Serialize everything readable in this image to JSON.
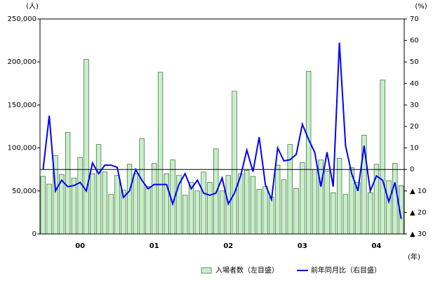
{
  "chart_data": {
    "type": "bar",
    "y_unit": "(人)",
    "y2_unit": "(%)",
    "x_unit": "(年)",
    "categories": [
      null,
      null,
      null,
      null,
      null,
      null,
      "00",
      null,
      null,
      null,
      null,
      null,
      null,
      null,
      null,
      null,
      null,
      null,
      "01",
      null,
      null,
      null,
      null,
      null,
      null,
      null,
      null,
      null,
      null,
      null,
      "02",
      null,
      null,
      null,
      null,
      null,
      null,
      null,
      null,
      null,
      null,
      null,
      "03",
      null,
      null,
      null,
      null,
      null,
      null,
      null,
      null,
      null,
      null,
      null,
      "04",
      null,
      null,
      null,
      null
    ],
    "series": [
      {
        "name": "入場者数（左目盛）",
        "type": "bar",
        "color": "#c8f0c8",
        "edge": "#1a4d1a",
        "values": [
          67000,
          58000,
          91000,
          69000,
          118000,
          65000,
          89000,
          203000,
          70000,
          104000,
          72000,
          46000,
          68000,
          51000,
          81000,
          70000,
          111000,
          55000,
          82000,
          188000,
          70000,
          86000,
          68000,
          45000,
          60000,
          50000,
          72000,
          60000,
          99000,
          50000,
          68000,
          166000,
          70000,
          74000,
          67000,
          52000,
          55000,
          43000,
          80000,
          63000,
          104000,
          53000,
          83000,
          189000,
          75000,
          86000,
          73000,
          48000,
          88000,
          46000,
          77000,
          60000,
          115000,
          48000,
          81000,
          179000,
          62000,
          82000,
          56000
        ]
      },
      {
        "name": "前年同月比（右目盛）",
        "type": "line",
        "axis": "y2",
        "color": "#0000ff",
        "values": [
          0,
          25,
          -10,
          -5,
          -8,
          -7.5,
          -6,
          -10,
          3,
          -2,
          2,
          2,
          1,
          -13,
          -10,
          0,
          -5,
          -9,
          -7,
          -7,
          -7,
          -16,
          -7,
          -2,
          -9,
          -5,
          -11,
          -12,
          -11,
          -4,
          -16,
          -11,
          -3,
          9,
          -1,
          15,
          -7,
          -14,
          10,
          4,
          4.5,
          7,
          21,
          14,
          8,
          -8,
          8,
          -8,
          59,
          11,
          -2,
          -10,
          11,
          -10,
          -3,
          -5,
          -15,
          -6,
          -23
        ]
      }
    ],
    "ylim": [
      0,
      250000
    ],
    "yticks": [
      0,
      {
        "value": 50000,
        "label": "50,000"
      },
      {
        "value": 100000,
        "label": "100,000"
      },
      {
        "value": 150000,
        "label": "150,000"
      },
      {
        "value": 200000,
        "label": "200,000"
      },
      {
        "value": 250000,
        "label": "250,000"
      }
    ],
    "y2lim": [
      -30,
      70
    ],
    "y2ticks": [
      {
        "value": -30,
        "label": "▲ 30"
      },
      {
        "value": -20,
        "label": "▲ 20"
      },
      {
        "value": -10,
        "label": "▲ 10"
      },
      0,
      10,
      20,
      30,
      40,
      50,
      60,
      70
    ],
    "zero_line": 0
  }
}
